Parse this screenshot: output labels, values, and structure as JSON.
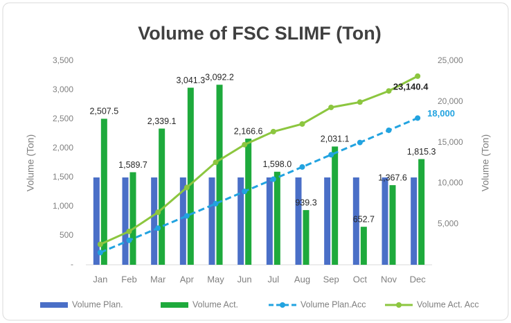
{
  "chart_data": {
    "type": "bar-line",
    "title": "Volume of FSC SLIMF (Ton)",
    "ylabel": "Volume (Ton)",
    "y2label": "Volume (Ton)",
    "categories": [
      "Jan",
      "Feb",
      "Mar",
      "Apr",
      "May",
      "Jun",
      "Jul",
      "Aug",
      "Sep",
      "Oct",
      "Nov",
      "Dec"
    ],
    "series": [
      {
        "name": "Volume Plan.",
        "type": "bar",
        "color": "#4a6fc7",
        "values": [
          1500,
          1500,
          1500,
          1500,
          1500,
          1500,
          1500,
          1500,
          1500,
          1500,
          1500,
          1500
        ]
      },
      {
        "name": "Volume Act.",
        "type": "bar",
        "color": "#1eaa3c",
        "values": [
          2507.5,
          1589.7,
          2339.1,
          3041.3,
          3092.2,
          2166.6,
          1598.0,
          939.3,
          2031.1,
          652.7,
          1367.6,
          1815.3
        ],
        "value_labels": [
          "2,507.5",
          "1,589.7",
          "2,339.1",
          "3,041.3",
          "3,092.2",
          "2,166.6",
          "1,598.0",
          "939.3",
          "2,031.1",
          "652.7",
          "1,367.6",
          "1,815.3"
        ]
      },
      {
        "name": "Volume Plan.Acc",
        "type": "line",
        "dashed": true,
        "axis": "y2",
        "color": "#22a3e0",
        "values": [
          1500,
          3000,
          4500,
          6000,
          7500,
          9000,
          10500,
          12000,
          13500,
          15000,
          16500,
          18000
        ],
        "value_labels": [
          null,
          null,
          null,
          null,
          null,
          null,
          null,
          null,
          null,
          null,
          null,
          "18,000"
        ]
      },
      {
        "name": "Volume Act. Acc",
        "type": "line",
        "dashed": false,
        "axis": "y2",
        "color": "#8cc63f",
        "values": [
          2507.5,
          4097.2,
          6436.3,
          9477.6,
          12569.8,
          14736.4,
          16334.4,
          17273.7,
          19304.8,
          19957.5,
          21325.1,
          23140.4
        ],
        "value_labels": [
          null,
          null,
          null,
          null,
          null,
          null,
          null,
          null,
          null,
          null,
          null,
          "23,140.4"
        ]
      }
    ],
    "ylim": [
      0,
      3500
    ],
    "yticks": [
      {
        "value": 0,
        "label": "-"
      },
      500,
      {
        "value": 1000,
        "label": "1,000"
      },
      {
        "value": 1500,
        "label": "1,500"
      },
      {
        "value": 2000,
        "label": "2,000"
      },
      {
        "value": 2500,
        "label": "2,500"
      },
      {
        "value": 3000,
        "label": "3,000"
      },
      {
        "value": 3500,
        "label": "3,500"
      }
    ],
    "y2lim": [
      0,
      25000
    ],
    "y2ticks": [
      {
        "value": 5000,
        "label": "5,000"
      },
      {
        "value": 10000,
        "label": "10,000"
      },
      {
        "value": 15000,
        "label": "15,000"
      },
      {
        "value": 20000,
        "label": "20,000"
      },
      {
        "value": 25000,
        "label": "25,000"
      }
    ],
    "legend": "bottom"
  }
}
